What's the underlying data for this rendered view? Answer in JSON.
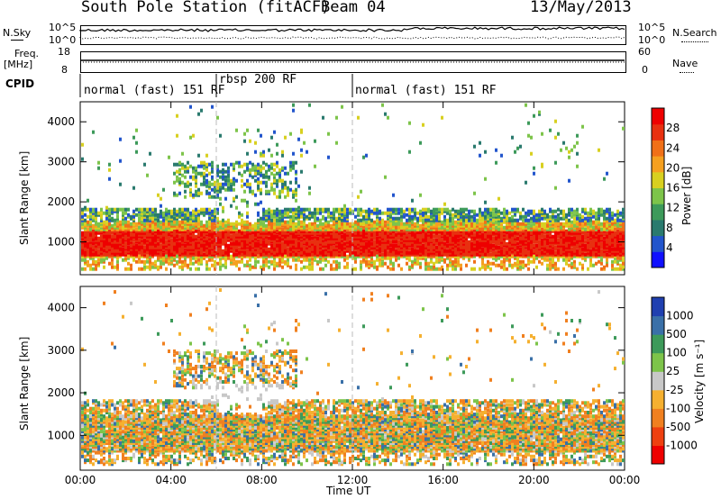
{
  "header": {
    "station": "South Pole Station (fitACF)",
    "beam": "Beam 04",
    "date": "13/May/2013"
  },
  "top_panels": {
    "nsky_label": "N.Sky",
    "nsearch_label": "N.Search",
    "freq_label_1": "Freq.",
    "freq_label_2": "[MHz]",
    "nave_label": "Nave",
    "cpid_label": "CPID",
    "noise_ticks_left": [
      "10^5",
      "10^0"
    ],
    "noise_ticks_right": [
      "10^5",
      "10^0"
    ],
    "freq_ticks": [
      "18",
      "8"
    ],
    "nave_ticks": [
      "60",
      "0"
    ]
  },
  "cpid_segments": [
    {
      "label": "normal (fast) 151 RF",
      "start_hour": 0,
      "end_hour": 6
    },
    {
      "label": "rbsp 200 RF",
      "start_hour": 6,
      "end_hour": 12
    },
    {
      "label": "normal (fast) 151 RF",
      "start_hour": 12,
      "end_hour": 24
    }
  ],
  "chart_data": [
    {
      "type": "heatmap",
      "name": "power-panel",
      "ylabel": "Slant Range [km]",
      "xlabel": "Time UT",
      "x_ticks": [
        "00:00",
        "04:00",
        "08:00",
        "12:00",
        "16:00",
        "20:00",
        "00:00"
      ],
      "y_ticks": [
        1000,
        2000,
        3000,
        4000
      ],
      "xlim_hours": [
        0,
        24
      ],
      "ylim_km": [
        180,
        4500
      ],
      "colorbar": {
        "label": "Power [dB]",
        "ticks": [
          4,
          8,
          12,
          16,
          20,
          24,
          28
        ],
        "range": [
          0,
          32
        ],
        "colors": [
          "#1010ff",
          "#2255cc",
          "#2a7a6e",
          "#3d9a5a",
          "#7dc44a",
          "#d8d020",
          "#f5a020",
          "#f07018",
          "#e83010",
          "#ee0000"
        ]
      },
      "description_bands": [
        {
          "from_hour": 0,
          "to_hour": 24,
          "from_km": 600,
          "to_km": 1400,
          "level": "high"
        },
        {
          "from_hour": 0,
          "to_hour": 24,
          "from_km": 1400,
          "to_km": 1800,
          "level": "medium"
        },
        {
          "from_hour": 4,
          "to_hour": 9,
          "from_km": 2200,
          "to_km": 3000,
          "level": "medium"
        }
      ]
    },
    {
      "type": "heatmap",
      "name": "velocity-panel",
      "ylabel": "Slant Range [km]",
      "xlabel": "Time UT",
      "x_ticks": [
        "00:00",
        "04:00",
        "08:00",
        "12:00",
        "16:00",
        "20:00",
        "00:00"
      ],
      "y_ticks": [
        1000,
        2000,
        3000,
        4000
      ],
      "xlim_hours": [
        0,
        24
      ],
      "ylim_km": [
        180,
        4500
      ],
      "colorbar": {
        "label": "Velocity [m s⁻¹]",
        "ticks": [
          "1000",
          "500",
          "100",
          "25",
          "-25",
          "-100",
          "-500",
          "-1000"
        ],
        "colors": [
          "#2040b0",
          "#3a70a8",
          "#3d9a5a",
          "#7dc44a",
          "#c8c8c8",
          "#f5b030",
          "#f08020",
          "#ee4010",
          "#ee0000"
        ]
      }
    }
  ]
}
